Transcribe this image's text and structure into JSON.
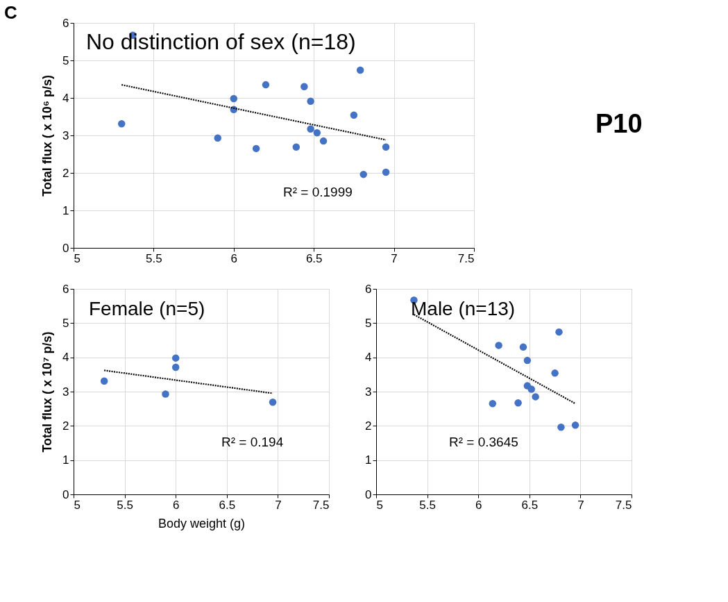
{
  "chart_data": [
    {
      "type": "scatter",
      "title": "No distinction of sex (n=18)",
      "ylabel": "Total flux ( x 10⁶ p/s)",
      "xlim": [
        5,
        7.5
      ],
      "xticks": [
        5,
        5.5,
        6,
        6.5,
        7,
        7.5
      ],
      "ylim": [
        0,
        6
      ],
      "yticks": [
        0,
        1,
        2,
        3,
        4,
        5,
        6
      ],
      "grid": true,
      "annotations": [
        "C",
        "R² = 0.1999",
        "P10"
      ],
      "series": [
        {
          "marker": "circle",
          "color": "#4472c4",
          "x": [
            5.37,
            5.3,
            6.0,
            6.0,
            5.9,
            6.2,
            6.14,
            6.44,
            6.48,
            6.39,
            6.48,
            6.52,
            6.56,
            6.75,
            6.79,
            6.81,
            6.95,
            6.95
          ],
          "values": [
            5.67,
            3.31,
            3.98,
            3.69,
            2.93,
            4.35,
            2.65,
            4.3,
            3.91,
            2.69,
            3.17,
            3.07,
            2.85,
            3.54,
            4.74,
            1.96,
            2.69,
            2.02
          ]
        },
        {
          "type": "line",
          "color": "#000000",
          "line_style": "dotted",
          "x": [
            5.3,
            6.95
          ],
          "values": [
            4.35,
            2.88
          ]
        }
      ]
    },
    {
      "type": "scatter",
      "title": "Female (n=5)",
      "xlabel": "Body weight (g)",
      "ylabel": "Total flux ( x 10⁷ p/s)",
      "xlim": [
        5,
        7.5
      ],
      "xticks": [
        5,
        5.5,
        6,
        6.5,
        7,
        7.5
      ],
      "ylim": [
        0,
        6
      ],
      "yticks": [
        0,
        1,
        2,
        3,
        4,
        5,
        6
      ],
      "grid": true,
      "annotations": [
        "R² = 0.194"
      ],
      "series": [
        {
          "marker": "circle",
          "color": "#4472c4",
          "x": [
            5.3,
            5.9,
            6.0,
            6.0,
            6.95
          ],
          "values": [
            3.31,
            2.93,
            3.98,
            3.71,
            2.69
          ]
        },
        {
          "type": "line",
          "color": "#000000",
          "line_style": "dotted",
          "x": [
            5.3,
            6.95
          ],
          "values": [
            3.62,
            2.95
          ]
        }
      ]
    },
    {
      "type": "scatter",
      "title": "Male (n=13)",
      "xlim": [
        5,
        7.5
      ],
      "xticks": [
        5,
        5.5,
        6,
        6.5,
        7,
        7.5
      ],
      "ylim": [
        0,
        6
      ],
      "yticks": [
        0,
        1,
        2,
        3,
        4,
        5,
        6
      ],
      "grid": true,
      "annotations": [
        "R² = 0.3645"
      ],
      "series": [
        {
          "marker": "circle",
          "color": "#4472c4",
          "x": [
            5.37,
            6.14,
            6.2,
            6.39,
            6.44,
            6.48,
            6.48,
            6.52,
            6.56,
            6.75,
            6.79,
            6.81,
            6.95
          ],
          "values": [
            5.67,
            2.65,
            4.35,
            2.67,
            4.3,
            3.91,
            3.17,
            3.07,
            2.85,
            3.54,
            4.74,
            1.96,
            2.02
          ]
        },
        {
          "type": "line",
          "color": "#000000",
          "line_style": "dotted",
          "x": [
            5.37,
            6.95
          ],
          "values": [
            5.25,
            2.65
          ]
        }
      ]
    }
  ]
}
